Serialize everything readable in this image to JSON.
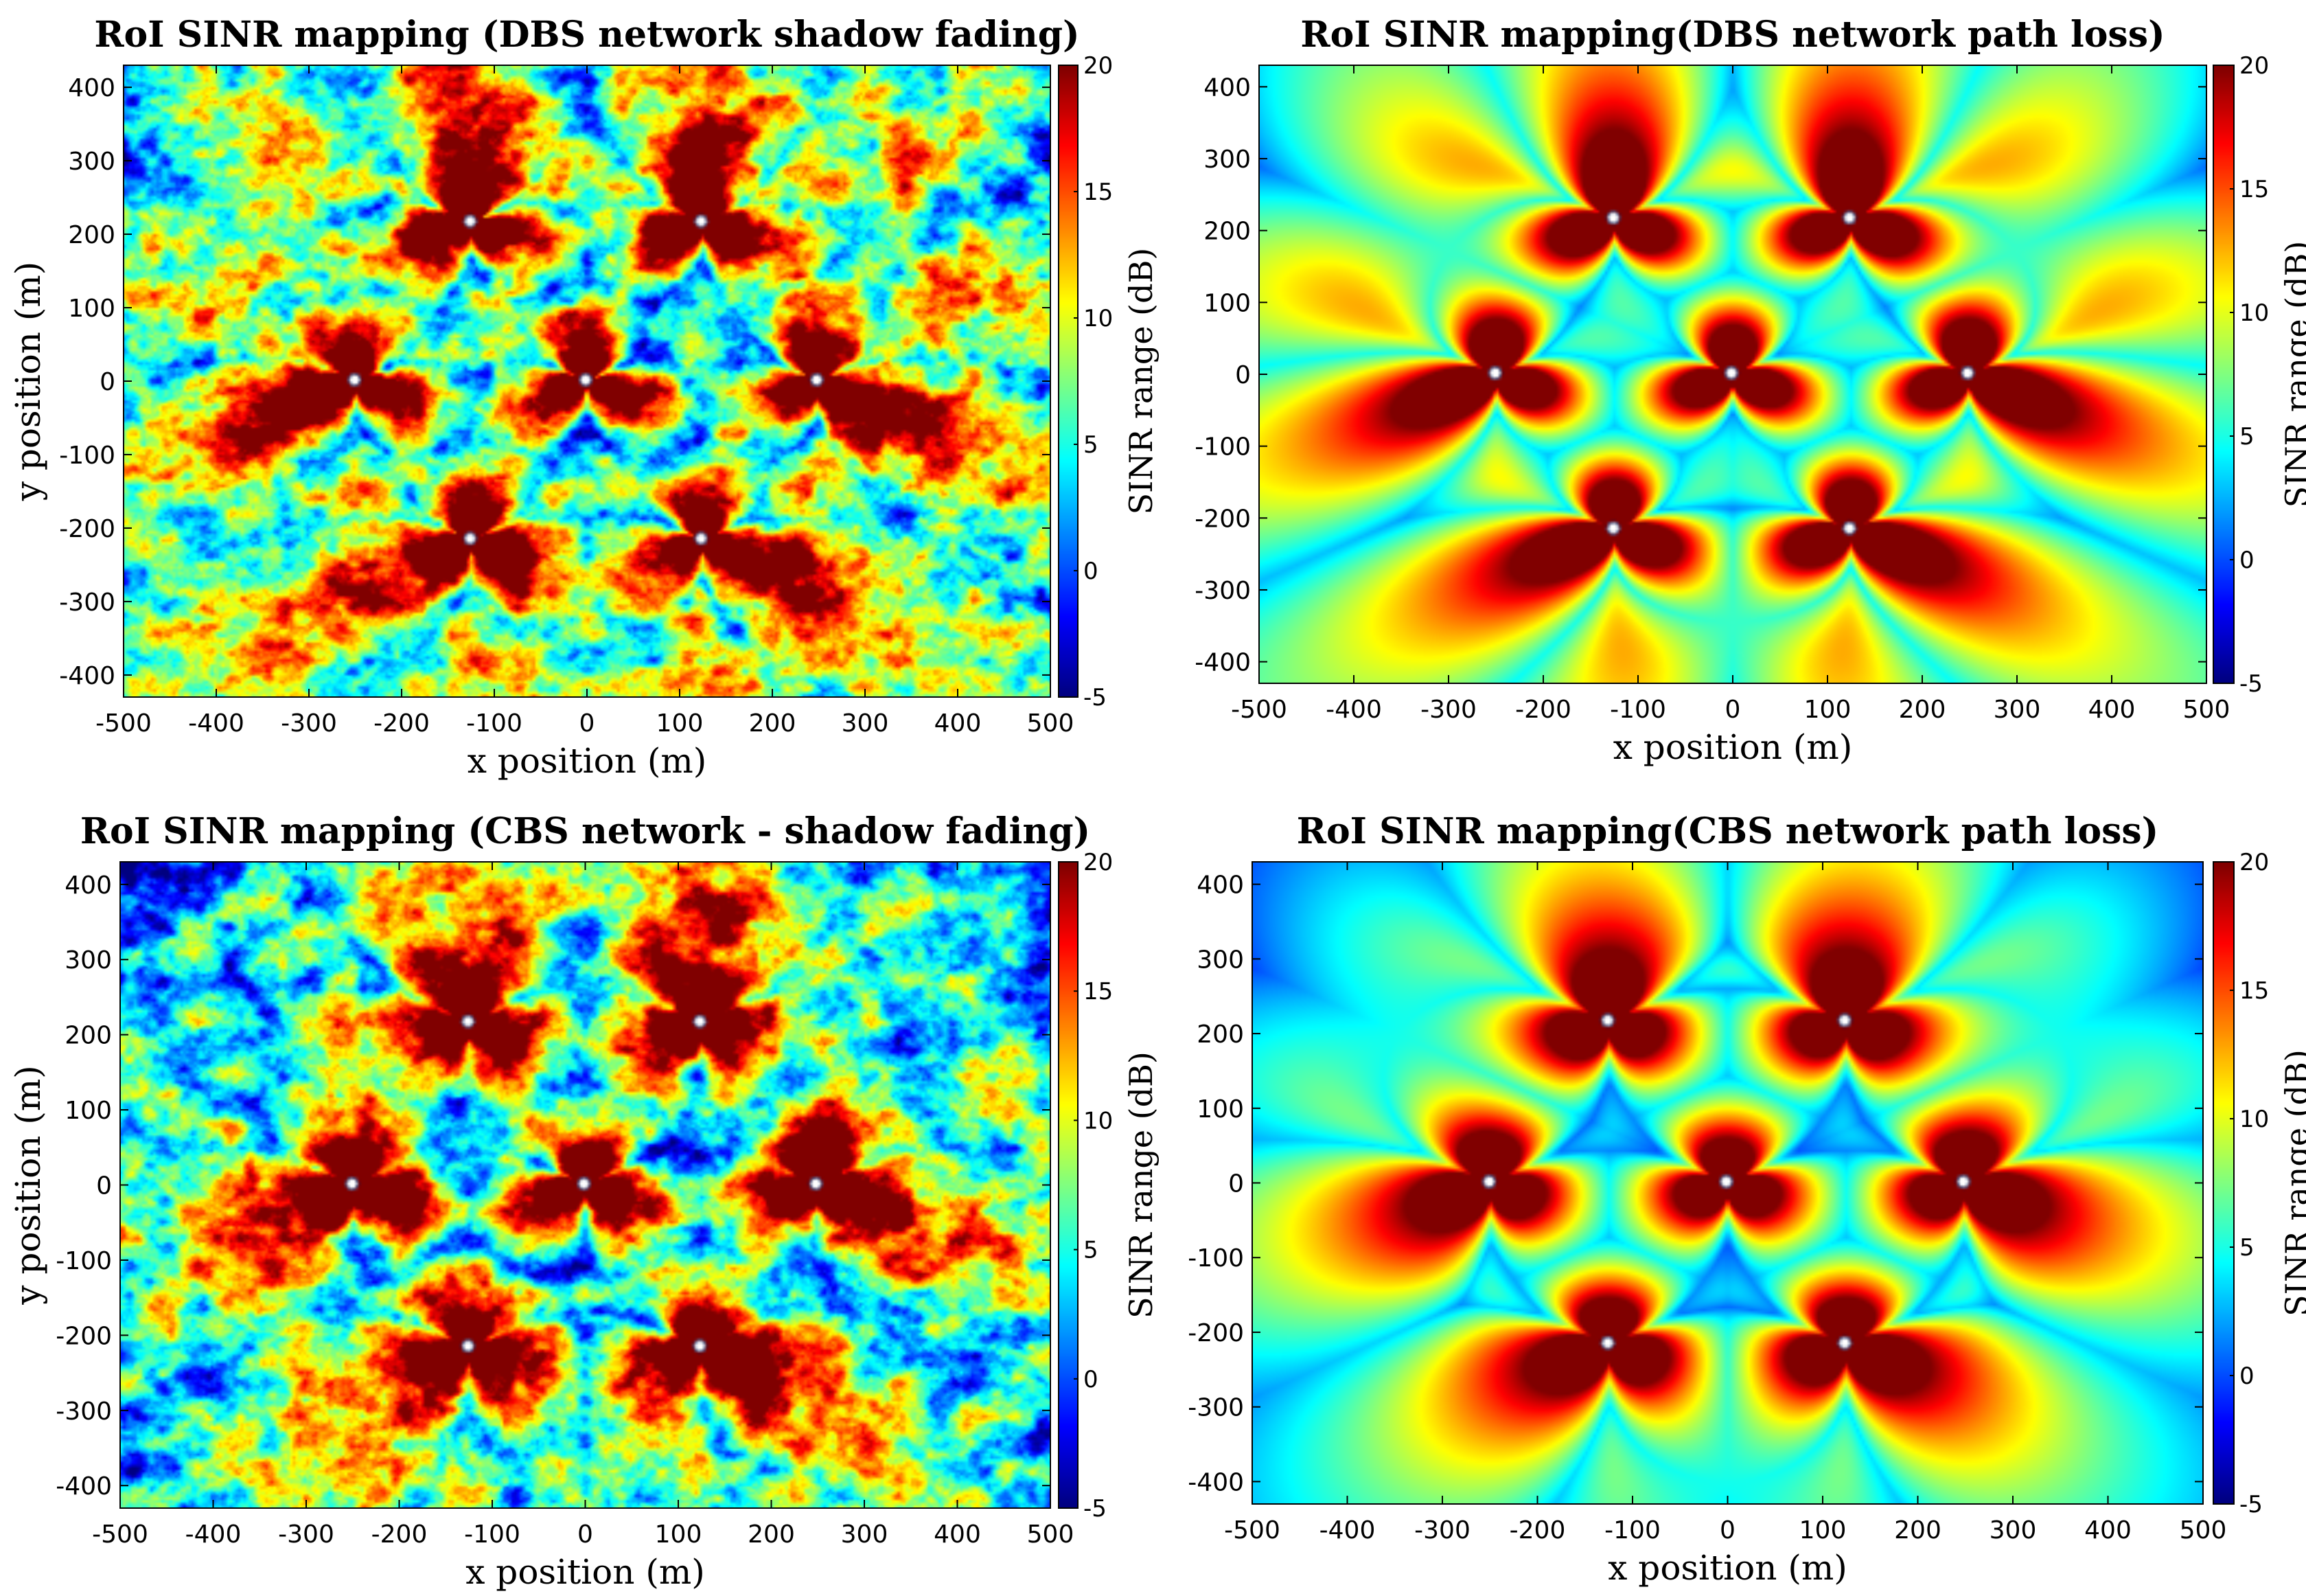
{
  "colormap": "jet",
  "charts": [
    {
      "id": "dbs-shadow",
      "type": "heatmap",
      "title": "RoI SINR mapping (DBS network shadow fading)",
      "xlabel": "x position (m)",
      "ylabel": "y position (m)",
      "colorbar_label": "SINR range (dB)",
      "xlim": [
        -500,
        500
      ],
      "ylim": [
        -430,
        430
      ],
      "clim": [
        -5,
        20
      ],
      "xticks": [
        "-500",
        "-400",
        "-300",
        "-200",
        "-100",
        "0",
        "100",
        "200",
        "300",
        "400",
        "500"
      ],
      "yticks": [
        "-400",
        "-300",
        "-200",
        "-100",
        "0",
        "100",
        "200",
        "300",
        "400"
      ],
      "cticks": [
        "20",
        "15",
        "10",
        "5",
        "0",
        "-5"
      ],
      "network": "DBS",
      "effect": "shadow fading"
    },
    {
      "id": "dbs-pathloss",
      "type": "heatmap",
      "title": "RoI SINR mapping(DBS network path loss)",
      "xlabel": "x position (m)",
      "ylabel": "",
      "colorbar_label": "SINR range (dB)",
      "xlim": [
        -500,
        500
      ],
      "ylim": [
        -430,
        430
      ],
      "clim": [
        -5,
        20
      ],
      "xticks": [
        "-500",
        "-400",
        "-300",
        "-200",
        "-100",
        "0",
        "100",
        "200",
        "300",
        "400",
        "500"
      ],
      "yticks": [
        "-400",
        "-300",
        "-200",
        "-100",
        "0",
        "100",
        "200",
        "300",
        "400"
      ],
      "cticks": [
        "20",
        "15",
        "10",
        "5",
        "0",
        "-5"
      ],
      "network": "DBS",
      "effect": "path loss"
    },
    {
      "id": "cbs-shadow",
      "type": "heatmap",
      "title": "RoI SINR mapping (CBS network - shadow fading)",
      "xlabel": "x position (m)",
      "ylabel": "y position (m)",
      "colorbar_label": "SINR range (dB)",
      "xlim": [
        -500,
        500
      ],
      "ylim": [
        -430,
        430
      ],
      "clim": [
        -5,
        20
      ],
      "xticks": [
        "-500",
        "-400",
        "-300",
        "-200",
        "-100",
        "0",
        "100",
        "200",
        "300",
        "400",
        "500"
      ],
      "yticks": [
        "-400",
        "-300",
        "-200",
        "-100",
        "0",
        "100",
        "200",
        "300",
        "400"
      ],
      "cticks": [
        "20",
        "15",
        "10",
        "5",
        "0",
        "-5"
      ],
      "network": "CBS",
      "effect": "shadow fading"
    },
    {
      "id": "cbs-pathloss",
      "type": "heatmap",
      "title": "RoI  SINR mapping(CBS network path loss)",
      "xlabel": "x position (m)",
      "ylabel": "",
      "colorbar_label": "SINR range (dB)",
      "xlim": [
        -500,
        500
      ],
      "ylim": [
        -430,
        430
      ],
      "clim": [
        -5,
        20
      ],
      "xticks": [
        "-500",
        "-400",
        "-300",
        "-200",
        "-100",
        "0",
        "100",
        "200",
        "300",
        "400",
        "500"
      ],
      "yticks": [
        "-400",
        "-300",
        "-200",
        "-100",
        "0",
        "100",
        "200",
        "300",
        "400"
      ],
      "cticks": [
        "20",
        "15",
        "10",
        "5",
        "0",
        "-5"
      ],
      "network": "CBS",
      "effect": "path loss"
    }
  ],
  "chart_data": [
    {
      "type": "heatmap",
      "title": "RoI SINR mapping (DBS network shadow fading)",
      "xlabel": "x position (m)",
      "ylabel": "y position (m)",
      "colorbar_label": "SINR range (dB)",
      "xlim": [
        -500,
        500
      ],
      "ylim": [
        -430,
        430
      ],
      "clim": [
        -5,
        20
      ],
      "base_stations": [
        [
          0,
          0
        ],
        [
          125,
          217
        ],
        [
          -125,
          217
        ],
        [
          -250,
          0
        ],
        [
          -125,
          -217
        ],
        [
          125,
          -217
        ],
        [
          250,
          0
        ]
      ]
    },
    {
      "type": "heatmap",
      "title": "RoI SINR mapping(DBS network path loss)",
      "xlabel": "x position (m)",
      "colorbar_label": "SINR range (dB)",
      "xlim": [
        -500,
        500
      ],
      "ylim": [
        -430,
        430
      ],
      "clim": [
        -5,
        20
      ],
      "base_stations": [
        [
          0,
          0
        ],
        [
          125,
          217
        ],
        [
          -125,
          217
        ],
        [
          -250,
          0
        ],
        [
          -125,
          -217
        ],
        [
          125,
          -217
        ],
        [
          250,
          0
        ]
      ]
    },
    {
      "type": "heatmap",
      "title": "RoI SINR mapping (CBS network - shadow fading)",
      "xlabel": "x position (m)",
      "ylabel": "y position (m)",
      "colorbar_label": "SINR range (dB)",
      "xlim": [
        -500,
        500
      ],
      "ylim": [
        -430,
        430
      ],
      "clim": [
        -5,
        20
      ],
      "base_stations": [
        [
          0,
          0
        ],
        [
          125,
          217
        ],
        [
          -125,
          217
        ],
        [
          -250,
          0
        ],
        [
          -125,
          -217
        ],
        [
          125,
          -217
        ],
        [
          250,
          0
        ]
      ]
    },
    {
      "type": "heatmap",
      "title": "RoI  SINR mapping(CBS network path loss)",
      "xlabel": "x position (m)",
      "colorbar_label": "SINR range (dB)",
      "xlim": [
        -500,
        500
      ],
      "ylim": [
        -430,
        430
      ],
      "clim": [
        -5,
        20
      ],
      "base_stations": [
        [
          0,
          0
        ],
        [
          125,
          217
        ],
        [
          -125,
          217
        ],
        [
          -250,
          0
        ],
        [
          -125,
          -217
        ],
        [
          125,
          -217
        ],
        [
          250,
          0
        ]
      ]
    }
  ]
}
